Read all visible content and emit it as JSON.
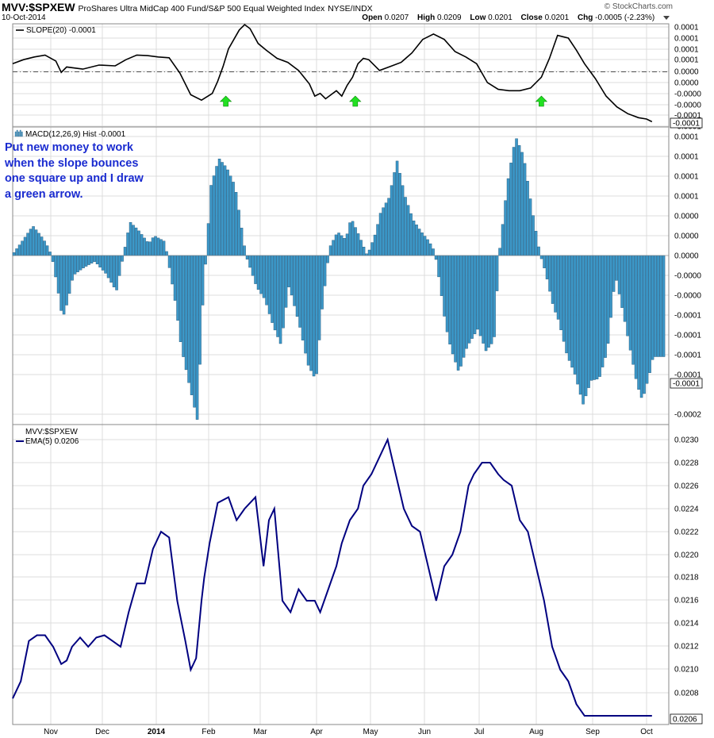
{
  "header": {
    "symbol": "MVV:$SPXEW",
    "description": "ProShares Ultra MidCap 400 Fund/S&P 500 Equal Weighted Index",
    "exchange": "NYSE/INDX",
    "date": "10-Oct-2014",
    "brand": "© StockCharts.com",
    "open_label": "Open",
    "open_value": "0.0207",
    "high_label": "High",
    "high_value": "0.0209",
    "low_label": "Low",
    "low_value": "0.0201",
    "close_label": "Close",
    "close_value": "0.0201",
    "chg_label": "Chg",
    "chg_value": "-0.0005 (-2.23%)"
  },
  "annotation": {
    "lines": [
      "Put new money to work",
      "when the slope bounces",
      "one square up and I draw",
      "a green arrow."
    ],
    "color": "#1a2bd0"
  },
  "colors": {
    "slope_line": "#000000",
    "macd_hist": "#3c98c8",
    "macd_hist_border": "#1e4f72",
    "price_line": "#000080",
    "arrow": "#22e022",
    "grid": "#dcdcdc",
    "zero_line": "#555555"
  },
  "chart_data": [
    {
      "type": "line",
      "panel": "slope",
      "legend": "SLOPE(20) -0.0001",
      "yticks": [
        "0.0001",
        "0.0001",
        "0.0001",
        "0.0001",
        "0.0000",
        "0.0000",
        "-0.0000",
        "-0.0000",
        "-0.0001",
        "-0.0001"
      ],
      "last_value": "-0.0001",
      "arrows_at_months": [
        3.95,
        6.35,
        9.8
      ],
      "x": [
        0,
        0.2,
        0.4,
        0.6,
        0.8,
        0.9,
        1.0,
        1.3,
        1.6,
        1.9,
        2.1,
        2.3,
        2.5,
        2.7,
        2.9,
        3.1,
        3.3,
        3.5,
        3.7,
        3.8,
        3.9,
        4.0,
        4.1,
        4.2,
        4.3,
        4.4,
        4.55,
        4.7,
        4.9,
        5.1,
        5.3,
        5.5,
        5.6,
        5.7,
        5.8,
        5.9,
        6.0,
        6.1,
        6.2,
        6.3,
        6.4,
        6.5,
        6.6,
        6.8,
        7.0,
        7.2,
        7.4,
        7.6,
        7.8,
        8.0,
        8.2,
        8.4,
        8.6,
        8.8,
        9.0,
        9.2,
        9.4,
        9.6,
        9.8,
        9.95,
        10.1,
        10.3,
        10.45,
        10.6,
        10.8,
        11.0,
        11.2,
        11.4,
        11.6,
        11.75,
        11.85
      ],
      "y": [
        0.3,
        0.45,
        0.55,
        0.62,
        0.4,
        -0.02,
        0.18,
        0.1,
        0.25,
        0.22,
        0.45,
        0.62,
        0.6,
        0.55,
        0.52,
        -0.05,
        -0.85,
        -1.05,
        -0.8,
        -0.35,
        0.2,
        0.85,
        1.2,
        1.55,
        1.75,
        1.6,
        1.05,
        0.8,
        0.5,
        0.35,
        0.05,
        -0.45,
        -0.9,
        -0.8,
        -1.0,
        -0.85,
        -0.7,
        -0.9,
        -0.5,
        -0.2,
        0.3,
        0.5,
        0.45,
        0.05,
        0.2,
        0.35,
        0.7,
        1.2,
        1.4,
        1.2,
        0.75,
        0.55,
        0.3,
        -0.4,
        -0.65,
        -0.7,
        -0.7,
        -0.6,
        -0.2,
        0.5,
        1.35,
        1.25,
        0.8,
        0.3,
        -0.25,
        -0.9,
        -1.3,
        -1.55,
        -1.7,
        -1.75,
        -1.85
      ]
    },
    {
      "type": "bar",
      "panel": "macd",
      "legend": "MACD(12,26,9) Hist -0.0001",
      "yticks": [
        "0.0001",
        "0.0001",
        "0.0001",
        "0.0001",
        "0.0000",
        "0.0000",
        "0.0000",
        "-0.0000",
        "-0.0000",
        "-0.0001",
        "-0.0001",
        "-0.0001",
        "-0.0001",
        "-0.0002"
      ],
      "last_value": "-0.0001",
      "knots_x": [
        0,
        0.2,
        0.35,
        0.5,
        0.6,
        0.7,
        0.8,
        0.9,
        1.0,
        1.1,
        1.3,
        1.5,
        1.7,
        1.9,
        2.05,
        2.15,
        2.3,
        2.5,
        2.6,
        2.8,
        3.0,
        3.1,
        3.25,
        3.4,
        3.5,
        3.65,
        3.8,
        3.95,
        4.1,
        4.3,
        4.5,
        4.65,
        4.8,
        4.95,
        5.1,
        5.3,
        5.45,
        5.6,
        5.7,
        5.85,
        6.0,
        6.15,
        6.25,
        6.4,
        6.55,
        6.7,
        6.8,
        6.95,
        7.1,
        7.25,
        7.4,
        7.55,
        7.7,
        7.8,
        7.9,
        8.0,
        8.1,
        8.25,
        8.4,
        8.6,
        8.75,
        8.9,
        9.0,
        9.15,
        9.3,
        9.45,
        9.6,
        9.75,
        9.85,
        10.0,
        10.1,
        10.25,
        10.4,
        10.55,
        10.7,
        10.85,
        11.0,
        11.15,
        11.3,
        11.45,
        11.55,
        11.65,
        11.78,
        11.85
      ],
      "knots_y": [
        0.15,
        0.9,
        1.5,
        1.0,
        0.6,
        0.0,
        -1.5,
        -3.2,
        -2.3,
        -1.0,
        -0.6,
        -0.3,
        -0.9,
        -1.8,
        0.3,
        1.7,
        1.3,
        0.6,
        1.0,
        0.7,
        -2.5,
        -4.6,
        -6.5,
        -8.3,
        -2.5,
        3.5,
        4.9,
        4.4,
        3.5,
        0.0,
        -1.6,
        -2.2,
        -3.5,
        -4.5,
        -1.5,
        -3.6,
        -5.5,
        -6.3,
        -3.0,
        0.4,
        1.2,
        0.8,
        1.9,
        1.0,
        0.0,
        1.1,
        2.2,
        2.9,
        4.8,
        3.0,
        1.8,
        1.2,
        0.7,
        0.2,
        -1.5,
        -3.5,
        -4.7,
        -5.9,
        -4.6,
        -3.7,
        -4.8,
        -4.3,
        0.2,
        3.7,
        6.0,
        5.0,
        2.4,
        0.1,
        -0.8,
        -2.6,
        -3.3,
        -5.0,
        -6.0,
        -7.5,
        -6.3,
        -6.2,
        -4.8,
        -1.0,
        -3.0,
        -5.1,
        -6.5,
        -7.3,
        -6.0,
        -5.1
      ]
    },
    {
      "type": "line",
      "panel": "price",
      "legend_top": "MVV:$SPXEW",
      "legend": "EMA(5) 0.0206",
      "yticks": [
        "0.0230",
        "0.0228",
        "0.0226",
        "0.0224",
        "0.0222",
        "0.0220",
        "0.0218",
        "0.0216",
        "0.0214",
        "0.0212",
        "0.0210",
        "0.0208"
      ],
      "last_value": "0.0206",
      "x": [
        0,
        0.15,
        0.3,
        0.45,
        0.6,
        0.75,
        0.9,
        1.0,
        1.1,
        1.25,
        1.4,
        1.55,
        1.7,
        1.85,
        2.0,
        2.15,
        2.3,
        2.45,
        2.6,
        2.75,
        2.9,
        3.05,
        3.2,
        3.3,
        3.4,
        3.5,
        3.55,
        3.65,
        3.8,
        4.0,
        4.15,
        4.3,
        4.5,
        4.65,
        4.75,
        4.85,
        5.0,
        5.15,
        5.3,
        5.45,
        5.6,
        5.7,
        5.85,
        6.0,
        6.1,
        6.25,
        6.4,
        6.5,
        6.65,
        6.8,
        6.95,
        7.05,
        7.25,
        7.4,
        7.55,
        7.7,
        7.85,
        8.0,
        8.15,
        8.3,
        8.45,
        8.55,
        8.7,
        8.85,
        9.0,
        9.1,
        9.25,
        9.4,
        9.55,
        9.7,
        9.85,
        10.0,
        10.15,
        10.3,
        10.45,
        10.6,
        10.75,
        10.9,
        11.05,
        11.2,
        11.35,
        11.5,
        11.6,
        11.7,
        11.8,
        11.85
      ],
      "y": [
        0.02075,
        0.0209,
        0.02125,
        0.0213,
        0.0213,
        0.0212,
        0.02105,
        0.02108,
        0.0212,
        0.02128,
        0.0212,
        0.02128,
        0.0213,
        0.02125,
        0.0212,
        0.0215,
        0.02175,
        0.02175,
        0.02205,
        0.0222,
        0.02215,
        0.0216,
        0.02125,
        0.021,
        0.0211,
        0.0216,
        0.0218,
        0.0221,
        0.02245,
        0.0225,
        0.0223,
        0.0224,
        0.0225,
        0.0219,
        0.0223,
        0.0224,
        0.0216,
        0.0215,
        0.0217,
        0.0216,
        0.0216,
        0.0215,
        0.0217,
        0.0219,
        0.0221,
        0.0223,
        0.0224,
        0.0226,
        0.0227,
        0.02285,
        0.023,
        0.0228,
        0.0224,
        0.02225,
        0.0222,
        0.0219,
        0.0216,
        0.0219,
        0.022,
        0.0222,
        0.0226,
        0.0227,
        0.0228,
        0.0228,
        0.0227,
        0.02265,
        0.0226,
        0.0223,
        0.0222,
        0.0219,
        0.0216,
        0.0212,
        0.021,
        0.0209,
        0.0207,
        0.0206,
        0.0206,
        0.0206,
        0.0206,
        0.0206,
        0.0206,
        0.0206,
        0.0206,
        0.0206,
        0.0206,
        0.0206
      ]
    }
  ],
  "x_axis": {
    "labels": [
      "Nov",
      "Dec",
      "2014",
      "Feb",
      "Mar",
      "Apr",
      "May",
      "Jun",
      "Jul",
      "Aug",
      "Sep",
      "Oct"
    ],
    "bold": [
      "2014"
    ]
  }
}
